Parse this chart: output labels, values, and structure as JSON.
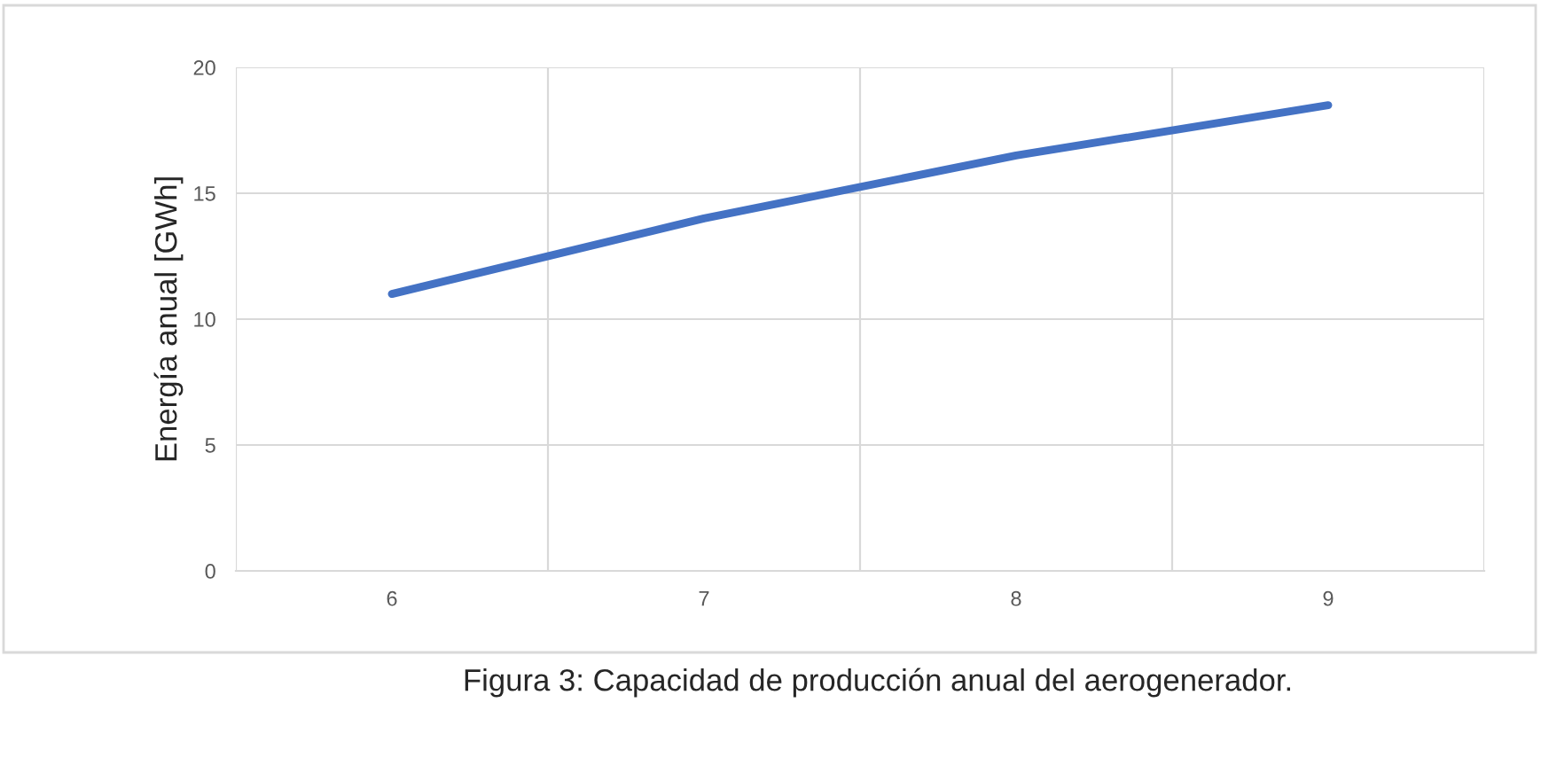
{
  "chart_data": {
    "type": "line",
    "ylabel": "Energía anual [GWh]",
    "categories": [
      "6",
      "7",
      "8",
      "9"
    ],
    "series": [
      {
        "color": "#4472c4",
        "values": [
          11,
          14,
          16.5,
          18.5
        ]
      }
    ],
    "ylim": [
      0,
      20
    ],
    "yticks": [
      0,
      5,
      10,
      15,
      20
    ],
    "grid": true,
    "legend": false,
    "marker": "none",
    "line_style": "solid",
    "annotations": [
      "Figura 3: Capacidad de producción anual del aerogenerador."
    ]
  }
}
